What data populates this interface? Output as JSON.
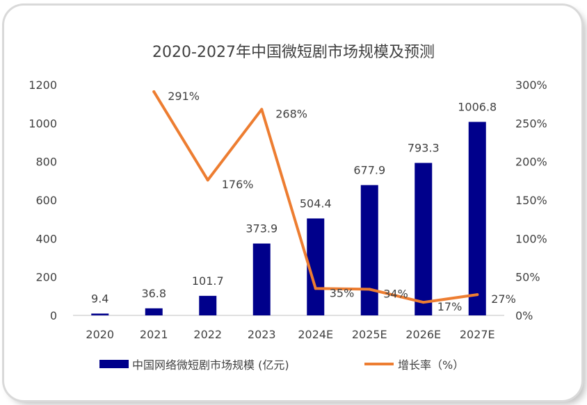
{
  "chart_data": {
    "type": "bar+line",
    "title": "2020-2027年中国微短剧市场规模及预测",
    "categories": [
      "2020",
      "2021",
      "2022",
      "2023",
      "2024E",
      "2025E",
      "2026E",
      "2027E"
    ],
    "series": [
      {
        "name": "中国网络微短剧市场规模 (亿元)",
        "type": "bar",
        "axis": "left",
        "color": "#00008b",
        "values": [
          9.4,
          36.8,
          101.7,
          373.9,
          504.4,
          677.9,
          793.3,
          1006.8
        ],
        "labels": [
          "9.4",
          "36.8",
          "101.7",
          "373.9",
          "504.4",
          "677.9",
          "793.3",
          "1006.8"
        ]
      },
      {
        "name": "增长率（%）",
        "type": "line",
        "axis": "right",
        "color": "#ed7d31",
        "values": [
          null,
          291,
          176,
          268,
          35,
          34,
          17,
          27
        ],
        "labels": [
          null,
          "291%",
          "176%",
          "268%",
          "35%",
          "34%",
          "17%",
          "27%"
        ]
      }
    ],
    "y_left": {
      "min": 0,
      "max": 1200,
      "step": 200,
      "ticks": [
        "0",
        "200",
        "400",
        "600",
        "800",
        "1000",
        "1200"
      ]
    },
    "y_right": {
      "min": 0,
      "max": 300,
      "step": 50,
      "ticks": [
        "0%",
        "50%",
        "100%",
        "150%",
        "200%",
        "250%",
        "300%"
      ]
    },
    "grid": false,
    "legend": "bottom"
  }
}
